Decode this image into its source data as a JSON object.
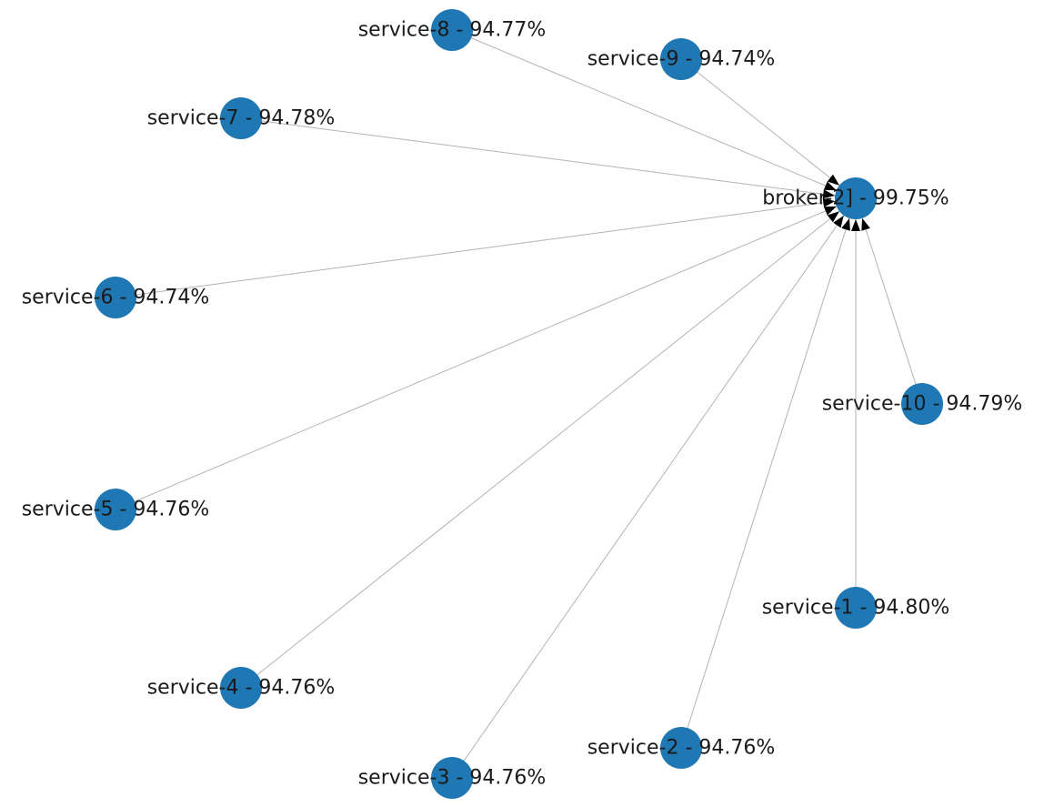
{
  "graph": {
    "node_color": "#1f77b4",
    "edge_color": "#b3b3b3",
    "arrow_color": "#000000",
    "hub": {
      "id": "broker-2",
      "label": "broker-2] - 99.75%"
    },
    "nodes": [
      {
        "id": "service-1",
        "label": "service-1 - 94.80%"
      },
      {
        "id": "service-2",
        "label": "service-2 - 94.76%"
      },
      {
        "id": "service-3",
        "label": "service-3 - 94.76%"
      },
      {
        "id": "service-4",
        "label": "service-4 - 94.76%"
      },
      {
        "id": "service-5",
        "label": "service-5 - 94.76%"
      },
      {
        "id": "service-6",
        "label": "service-6 - 94.74%"
      },
      {
        "id": "service-7",
        "label": "service-7 - 94.78%"
      },
      {
        "id": "service-8",
        "label": "service-8 - 94.77%"
      },
      {
        "id": "service-9",
        "label": "service-9 - 94.74%"
      },
      {
        "id": "service-10",
        "label": "service-10 - 94.79%"
      }
    ],
    "edges": [
      {
        "from": "service-1",
        "to": "broker-2"
      },
      {
        "from": "service-2",
        "to": "broker-2"
      },
      {
        "from": "service-3",
        "to": "broker-2"
      },
      {
        "from": "service-4",
        "to": "broker-2"
      },
      {
        "from": "service-5",
        "to": "broker-2"
      },
      {
        "from": "service-6",
        "to": "broker-2"
      },
      {
        "from": "service-7",
        "to": "broker-2"
      },
      {
        "from": "service-8",
        "to": "broker-2"
      },
      {
        "from": "service-9",
        "to": "broker-2"
      },
      {
        "from": "service-10",
        "to": "broker-2"
      }
    ]
  }
}
